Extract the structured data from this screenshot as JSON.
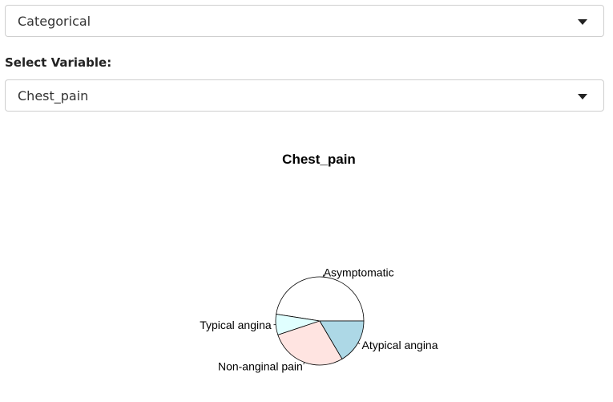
{
  "controls": {
    "type_select": {
      "value": "Categorical"
    },
    "variable_label": "Select Variable:",
    "variable_select": {
      "value": "Chest_pain"
    }
  },
  "chart_data": {
    "type": "pie",
    "title": "Chest_pain",
    "categories": [
      "Asymptomatic",
      "Typical angina",
      "Non-anginal pain",
      "Atypical angina"
    ],
    "values": [
      144,
      23,
      86,
      50
    ],
    "colors": [
      "#ffffff",
      "#e0ffff",
      "#ffe4e1",
      "#add8e6"
    ],
    "start_angle_deg": 0,
    "direction": "counterclockwise"
  }
}
